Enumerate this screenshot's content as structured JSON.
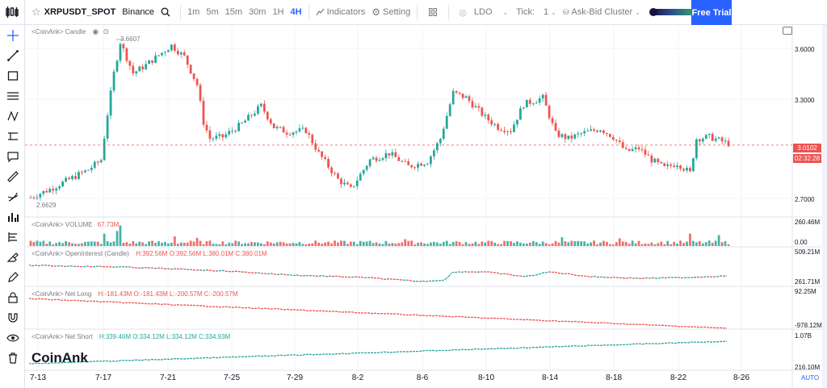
{
  "header": {
    "symbol": "XRPUSDT_SPOT",
    "exchange": "Binance",
    "intervals": [
      "1m",
      "5m",
      "15m",
      "30m",
      "1H",
      "4H"
    ],
    "active_interval": "4H",
    "indicators_label": "Indicators",
    "setting_label": "Setting",
    "ldo_label": "LDO",
    "tick_label": "Tick:",
    "tick_value": "1",
    "cluster_label": "Ask-Bid Cluster",
    "free_trial_label": "Free Trial",
    "gradient_colors": [
      "#1a1040",
      "#2a4a8a",
      "#2f8f7a",
      "#8fd64a",
      "#e8ff3a"
    ]
  },
  "left_tools": [
    "crosshair-icon",
    "trend-line-icon",
    "rectangle-icon",
    "parallel-channel-icon",
    "pattern-icon",
    "path-icon",
    "callout-icon",
    "ruler-icon",
    "brush-icon",
    "bar-chart-icon",
    "fib-icon",
    "eraser-icon",
    "pencil-icon",
    "lock-icon",
    "magnet-icon",
    "eye-icon",
    "trash-icon"
  ],
  "panes": {
    "candle": {
      "label": "<CoinAnk> Candle",
      "high_marker": "3.6607",
      "low_marker": "2.6629",
      "current_price": "3.0102",
      "countdown": "02:32:28",
      "axis": [
        "3.6000",
        "3.3000",
        "2.7000"
      ]
    },
    "volume": {
      "label": "<CoinAnk> VOLUME",
      "value": "67.73M",
      "axis": [
        "260.46M",
        "0.00"
      ]
    },
    "open_interest": {
      "label": "<CoinAnk> OpenInterest (Candle)",
      "h": "H:392.56M",
      "o": "O:392.56M",
      "l": "L:380.01M",
      "c": "C:380.01M",
      "axis": [
        "509.21M",
        "261.71M"
      ]
    },
    "net_long": {
      "label": "<CoinAnk> Net Long",
      "h": "H:-181.43M",
      "o": "O:-181.43M",
      "l": "L:-200.57M",
      "c": "C:-200.57M",
      "axis": [
        "92.25M",
        "-978.12M"
      ]
    },
    "net_short": {
      "label": "<CoinAnk> Net Short",
      "h": "H:339.46M",
      "o": "O:334.12M",
      "l": "L:334.12M",
      "c": "C:334.93M",
      "axis": [
        "1.07B",
        "216.10M"
      ]
    }
  },
  "x_axis": [
    "7-13",
    "7-17",
    "7-21",
    "7-25",
    "7-29",
    "8-2",
    "8-6",
    "8-10",
    "8-14",
    "8-18",
    "8-22",
    "8-26"
  ],
  "watermark": "CoinAnk",
  "auto_label": "AUTO",
  "chart_data": {
    "type": "candlestick",
    "price_path_keypoints": [
      [
        0,
        2.69
      ],
      [
        6,
        2.74
      ],
      [
        12,
        2.8
      ],
      [
        18,
        2.86
      ],
      [
        22,
        2.92
      ],
      [
        24,
        3.2
      ],
      [
        26,
        3.45
      ],
      [
        28,
        3.64
      ],
      [
        32,
        3.45
      ],
      [
        36,
        3.5
      ],
      [
        40,
        3.56
      ],
      [
        44,
        3.62
      ],
      [
        48,
        3.55
      ],
      [
        52,
        3.38
      ],
      [
        54,
        3.15
      ],
      [
        56,
        3.05
      ],
      [
        60,
        3.06
      ],
      [
        66,
        3.14
      ],
      [
        72,
        3.25
      ],
      [
        76,
        3.12
      ],
      [
        80,
        3.09
      ],
      [
        86,
        3.1
      ],
      [
        90,
        2.96
      ],
      [
        96,
        2.8
      ],
      [
        100,
        2.74
      ],
      [
        106,
        2.92
      ],
      [
        112,
        2.96
      ],
      [
        118,
        2.88
      ],
      [
        124,
        2.91
      ],
      [
        128,
        3.05
      ],
      [
        132,
        3.33
      ],
      [
        136,
        3.3
      ],
      [
        142,
        3.18
      ],
      [
        146,
        3.12
      ],
      [
        150,
        3.1
      ],
      [
        154,
        3.26
      ],
      [
        160,
        3.3
      ],
      [
        164,
        3.08
      ],
      [
        168,
        3.05
      ],
      [
        172,
        3.08
      ],
      [
        178,
        3.11
      ],
      [
        182,
        3.06
      ],
      [
        186,
        2.97
      ],
      [
        190,
        2.99
      ],
      [
        194,
        2.92
      ],
      [
        198,
        2.87
      ],
      [
        202,
        2.9
      ],
      [
        206,
        2.84
      ],
      [
        208,
        3.05
      ],
      [
        212,
        3.06
      ],
      [
        218,
        3.02
      ]
    ],
    "price_range": [
      2.6,
      3.72
    ],
    "volume_spikes": [
      [
        23,
        0.45
      ],
      [
        27,
        0.55
      ],
      [
        28,
        0.75
      ],
      [
        45,
        0.35
      ],
      [
        52,
        0.3
      ],
      [
        117,
        0.25
      ],
      [
        166,
        0.32
      ],
      [
        184,
        0.28
      ],
      [
        206,
        0.45
      ],
      [
        215,
        0.4
      ]
    ]
  }
}
